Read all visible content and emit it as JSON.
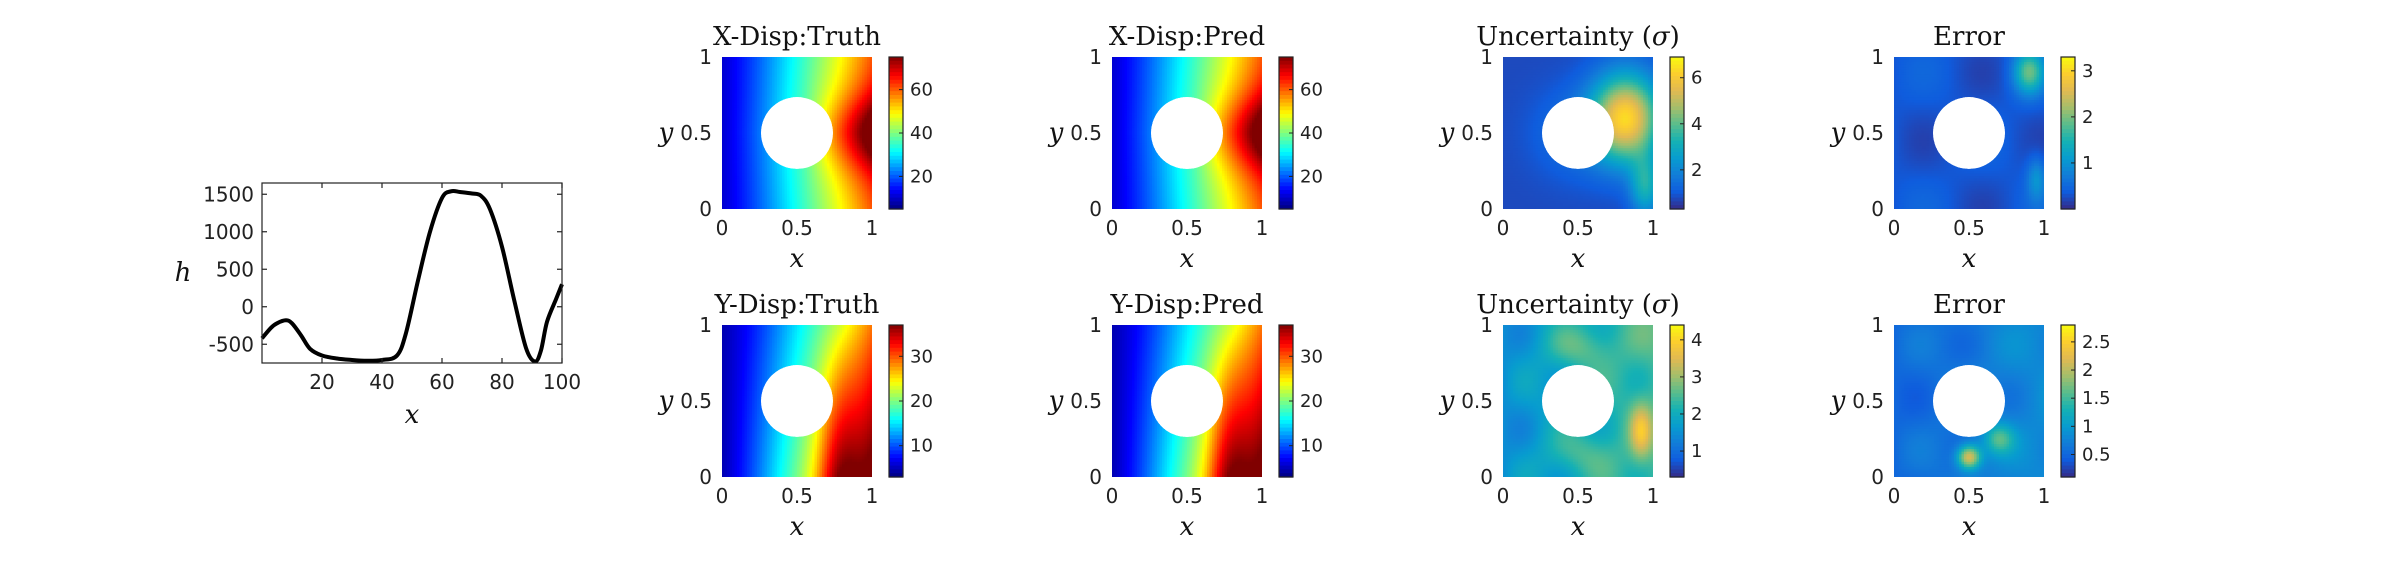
{
  "chart_data": [
    {
      "type": "line",
      "xlabel": "x",
      "ylabel": "h",
      "xlim": [
        0,
        100
      ],
      "ylim": [
        -750,
        1650
      ],
      "xticks": [
        20,
        40,
        60,
        80,
        100
      ],
      "yticks": [
        -500,
        0,
        500,
        1000,
        1500
      ],
      "series": [
        {
          "color": "#000000",
          "x": [
            0,
            3,
            5,
            8,
            10,
            13,
            16,
            20,
            25,
            30,
            35,
            40,
            45,
            48,
            52,
            56,
            60,
            63,
            66,
            70,
            73,
            76,
            80,
            84,
            88,
            91,
            93,
            95,
            98,
            100
          ],
          "y": [
            -420,
            -280,
            -220,
            -180,
            -220,
            -380,
            -560,
            -650,
            -690,
            -710,
            -720,
            -710,
            -650,
            -350,
            350,
            1000,
            1450,
            1540,
            1530,
            1510,
            1480,
            1300,
            800,
            100,
            -550,
            -730,
            -580,
            -200,
            100,
            300
          ]
        }
      ]
    },
    {
      "type": "heatmap",
      "title": "X-Disp:Truth",
      "xlabel": "x",
      "ylabel": "y",
      "colormap": "jet",
      "field": "xdisp",
      "cbar_ticks": [
        "20",
        "40",
        "60"
      ],
      "cbar_range": [
        5,
        75
      ]
    },
    {
      "type": "heatmap",
      "title": "X-Disp:Pred",
      "xlabel": "x",
      "ylabel": "y",
      "colormap": "jet",
      "field": "xdisp",
      "cbar_ticks": [
        "20",
        "40",
        "60"
      ],
      "cbar_range": [
        5,
        75
      ]
    },
    {
      "type": "heatmap",
      "title": "Uncertainty ($\\sigma$)",
      "xlabel": "x",
      "ylabel": "y",
      "colormap": "parula",
      "field": "unc1",
      "cbar_ticks": [
        "2",
        "4",
        "6"
      ],
      "cbar_range": [
        0.3,
        6.9
      ]
    },
    {
      "type": "heatmap",
      "title": "Error",
      "xlabel": "x",
      "ylabel": "y",
      "colormap": "parula",
      "field": "err1",
      "cbar_ticks": [
        "1",
        "2",
        "3"
      ],
      "cbar_range": [
        0,
        3.3
      ]
    },
    {
      "type": "heatmap",
      "title": "Y-Disp:Truth",
      "xlabel": "x",
      "ylabel": "y",
      "colormap": "jet",
      "field": "ydisp",
      "cbar_ticks": [
        "10",
        "20",
        "30"
      ],
      "cbar_range": [
        3,
        37
      ]
    },
    {
      "type": "heatmap",
      "title": "Y-Disp:Pred",
      "xlabel": "x",
      "ylabel": "y",
      "colormap": "jet",
      "field": "ydisp",
      "cbar_ticks": [
        "10",
        "20",
        "30"
      ],
      "cbar_range": [
        3,
        37
      ]
    },
    {
      "type": "heatmap",
      "title": "Uncertainty ($\\sigma$)",
      "xlabel": "x",
      "ylabel": "y",
      "colormap": "parula",
      "field": "unc2",
      "cbar_ticks": [
        "1",
        "2",
        "3",
        "4"
      ],
      "cbar_range": [
        0.3,
        4.4
      ]
    },
    {
      "type": "heatmap",
      "title": "Error",
      "xlabel": "x",
      "ylabel": "y",
      "colormap": "parula",
      "field": "err2",
      "cbar_ticks": [
        "0.5",
        "1",
        "1.5",
        "2",
        "2.5"
      ],
      "cbar_range": [
        0.1,
        2.8
      ]
    }
  ],
  "heatmap_axes": {
    "xticks": [
      "0",
      "0.5",
      "1"
    ],
    "yticks": [
      "0",
      "0.5",
      "1"
    ]
  },
  "hole": {
    "center": [
      0.5,
      0.5
    ],
    "radius": 0.24
  }
}
